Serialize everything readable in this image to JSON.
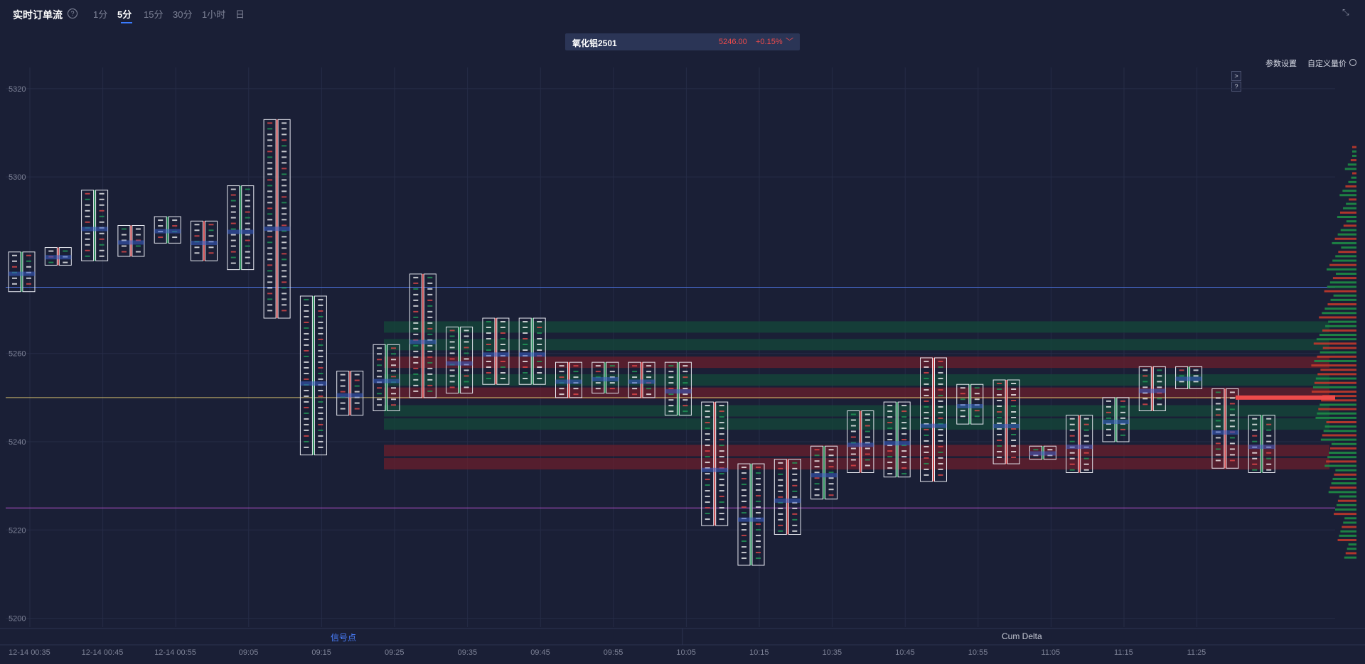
{
  "header": {
    "title": "实时订单流",
    "timeframes": [
      "1分",
      "5分",
      "15分",
      "30分",
      "1小时",
      "日"
    ],
    "active_timeframe": "5分"
  },
  "instrument": {
    "name": "氧化铝2501",
    "price": "5246.00",
    "change": "+0.15%"
  },
  "toolbar": {
    "params_label": "参数设置",
    "custom_label": "自定义量价"
  },
  "side_buttons": [
    ">",
    "?"
  ],
  "bottom_tabs": {
    "signal": "信号点",
    "cum_delta": "Cum Delta"
  },
  "colors": {
    "background": "#1a1f36",
    "up": "#ef4b4b",
    "down": "#22a35a",
    "accent": "#3a7bff",
    "line_blue": "#4a6fd8",
    "line_gold": "#c8b46a",
    "line_purple": "#b050c8"
  },
  "chart_data": {
    "type": "footprint",
    "y_ticks": [
      5320,
      5300,
      5260,
      5240,
      5220,
      5200
    ],
    "ylim": [
      5198,
      5324
    ],
    "x_ticks": [
      "12-14 00:35",
      "12-14 00:45",
      "12-14 00:55",
      "09:05",
      "09:15",
      "09:25",
      "09:35",
      "09:45",
      "09:55",
      "10:05",
      "10:15",
      "10:35",
      "10:45",
      "10:55",
      "11:05",
      "11:15",
      "11:25"
    ],
    "reference_lines": [
      {
        "name": "blue",
        "value": 5275
      },
      {
        "name": "gold",
        "value": 5250
      },
      {
        "name": "purple",
        "value": 5225
      }
    ],
    "bars": [
      {
        "time": "00:30",
        "high": 5283,
        "low": 5274
      },
      {
        "time": "00:35",
        "high": 5284,
        "low": 5280
      },
      {
        "time": "00:40",
        "high": 5297,
        "low": 5281
      },
      {
        "time": "00:45",
        "high": 5289,
        "low": 5282
      },
      {
        "time": "00:50",
        "high": 5291,
        "low": 5285
      },
      {
        "time": "00:55",
        "high": 5290,
        "low": 5281
      },
      {
        "time": "01:00",
        "high": 5298,
        "low": 5279
      },
      {
        "time": "09:00",
        "high": 5313,
        "low": 5268
      },
      {
        "time": "09:05",
        "high": 5273,
        "low": 5237
      },
      {
        "time": "09:10",
        "high": 5256,
        "low": 5246
      },
      {
        "time": "09:15",
        "high": 5262,
        "low": 5247
      },
      {
        "time": "09:20",
        "high": 5278,
        "low": 5250
      },
      {
        "time": "09:25",
        "high": 5266,
        "low": 5251
      },
      {
        "time": "09:30",
        "high": 5268,
        "low": 5253
      },
      {
        "time": "09:35",
        "high": 5268,
        "low": 5253
      },
      {
        "time": "09:40",
        "high": 5258,
        "low": 5250
      },
      {
        "time": "09:45",
        "high": 5258,
        "low": 5251
      },
      {
        "time": "09:50",
        "high": 5258,
        "low": 5250
      },
      {
        "time": "09:55",
        "high": 5258,
        "low": 5246
      },
      {
        "time": "10:00",
        "high": 5249,
        "low": 5221
      },
      {
        "time": "10:05",
        "high": 5235,
        "low": 5212
      },
      {
        "time": "10:10",
        "high": 5236,
        "low": 5219
      },
      {
        "time": "10:15",
        "high": 5239,
        "low": 5227
      },
      {
        "time": "10:20",
        "high": 5247,
        "low": 5233
      },
      {
        "time": "10:25",
        "high": 5249,
        "low": 5232
      },
      {
        "time": "10:30",
        "high": 5259,
        "low": 5231
      },
      {
        "time": "10:35",
        "high": 5253,
        "low": 5244
      },
      {
        "time": "10:40",
        "high": 5254,
        "low": 5235
      },
      {
        "time": "10:45",
        "high": 5239,
        "low": 5236
      },
      {
        "time": "10:50",
        "high": 5246,
        "low": 5233
      },
      {
        "time": "10:55",
        "high": 5250,
        "low": 5240
      },
      {
        "time": "11:00",
        "high": 5257,
        "low": 5247
      },
      {
        "time": "11:05",
        "high": 5257,
        "low": 5252
      },
      {
        "time": "11:10",
        "high": 5252,
        "low": 5234
      },
      {
        "time": "11:15",
        "high": 5246,
        "low": 5233
      }
    ],
    "profile_bands": [
      {
        "value": 5266,
        "type": "down"
      },
      {
        "value": 5262,
        "type": "down"
      },
      {
        "value": 5258,
        "type": "up"
      },
      {
        "value": 5254,
        "type": "down"
      },
      {
        "value": 5251,
        "type": "up"
      },
      {
        "value": 5247,
        "type": "down"
      },
      {
        "value": 5244,
        "type": "down"
      },
      {
        "value": 5238,
        "type": "up"
      },
      {
        "value": 5235,
        "type": "up"
      }
    ]
  }
}
